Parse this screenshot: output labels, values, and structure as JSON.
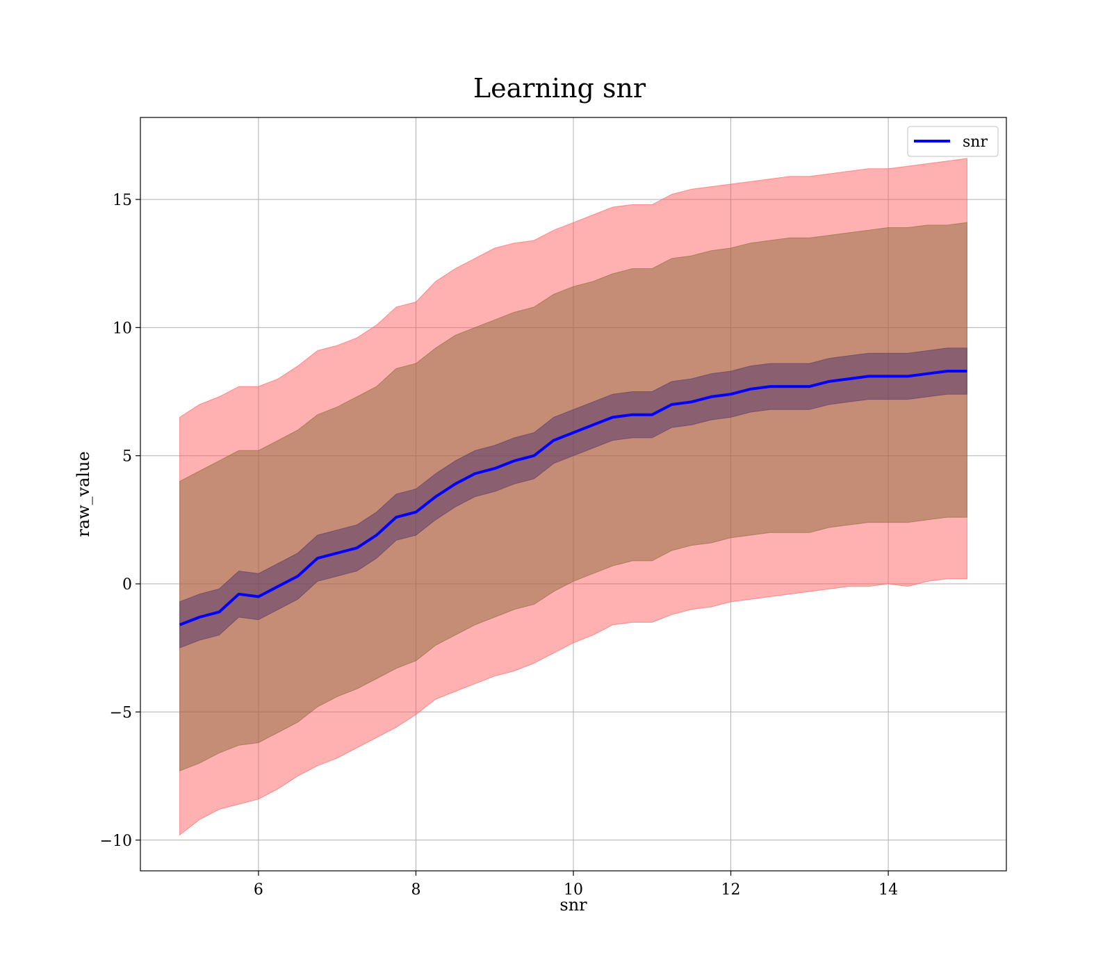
{
  "chart_data": {
    "type": "line",
    "title": "Learning snr",
    "xlabel": "snr",
    "ylabel": "raw_value",
    "xlim": [
      4.5,
      15.5
    ],
    "ylim": [
      -11.2,
      18.2
    ],
    "xticks": [
      6,
      8,
      10,
      12,
      14
    ],
    "yticks": [
      -10,
      -5,
      0,
      5,
      10,
      15
    ],
    "xtick_labels": [
      "6",
      "8",
      "10",
      "12",
      "14"
    ],
    "ytick_labels": [
      "−10",
      "−5",
      "0",
      "5",
      "10",
      "15"
    ],
    "grid": true,
    "legend": {
      "position": "top-right",
      "entries": [
        "snr"
      ]
    },
    "colors": {
      "line": "#0000ff",
      "outer_band": "#ff5a5a",
      "middle_band": "#8b6a3a",
      "inner_band": "#5a3a6a",
      "grid": "#b0b0b0"
    },
    "x": [
      5.0,
      5.25,
      5.5,
      5.75,
      6.0,
      6.25,
      6.5,
      6.75,
      7.0,
      7.25,
      7.5,
      7.75,
      8.0,
      8.25,
      8.5,
      8.75,
      9.0,
      9.25,
      9.5,
      9.75,
      10.0,
      10.25,
      10.5,
      10.75,
      11.0,
      11.25,
      11.5,
      11.75,
      12.0,
      12.25,
      12.5,
      12.75,
      13.0,
      13.25,
      13.5,
      13.75,
      14.0,
      14.25,
      14.5,
      14.75,
      15.0
    ],
    "series": [
      {
        "name": "snr",
        "values": [
          -1.6,
          -1.3,
          -1.1,
          -0.4,
          -0.5,
          -0.1,
          0.3,
          1.0,
          1.2,
          1.4,
          1.9,
          2.6,
          2.8,
          3.4,
          3.9,
          4.3,
          4.5,
          4.8,
          5.0,
          5.6,
          5.9,
          6.2,
          6.5,
          6.6,
          6.6,
          7.0,
          7.1,
          7.3,
          7.4,
          7.6,
          7.7,
          7.7,
          7.7,
          7.9,
          8.0,
          8.1,
          8.1,
          8.1,
          8.2,
          8.3,
          8.3
        ]
      }
    ],
    "bands": [
      {
        "lower": [
          -9.8,
          -9.2,
          -8.8,
          -8.6,
          -8.4,
          -8.0,
          -7.5,
          -7.1,
          -6.8,
          -6.4,
          -6.0,
          -5.6,
          -5.1,
          -4.5,
          -4.2,
          -3.9,
          -3.6,
          -3.4,
          -3.1,
          -2.7,
          -2.3,
          -2.0,
          -1.6,
          -1.5,
          -1.5,
          -1.2,
          -1.0,
          -0.9,
          -0.7,
          -0.6,
          -0.5,
          -0.4,
          -0.3,
          -0.2,
          -0.1,
          -0.1,
          0.0,
          -0.1,
          0.1,
          0.2,
          0.2
        ],
        "upper": [
          6.5,
          7.0,
          7.3,
          7.7,
          7.7,
          8.0,
          8.5,
          9.1,
          9.3,
          9.6,
          10.1,
          10.8,
          11.0,
          11.8,
          12.3,
          12.7,
          13.1,
          13.3,
          13.4,
          13.8,
          14.1,
          14.4,
          14.7,
          14.8,
          14.8,
          15.2,
          15.4,
          15.5,
          15.6,
          15.7,
          15.8,
          15.9,
          15.9,
          16.0,
          16.1,
          16.2,
          16.2,
          16.3,
          16.4,
          16.5,
          16.6
        ]
      },
      {
        "lower": [
          -7.3,
          -7.0,
          -6.6,
          -6.3,
          -6.2,
          -5.8,
          -5.4,
          -4.8,
          -4.4,
          -4.1,
          -3.7,
          -3.3,
          -3.0,
          -2.4,
          -2.0,
          -1.6,
          -1.3,
          -1.0,
          -0.8,
          -0.3,
          0.1,
          0.4,
          0.7,
          0.9,
          0.9,
          1.3,
          1.5,
          1.6,
          1.8,
          1.9,
          2.0,
          2.0,
          2.0,
          2.2,
          2.3,
          2.4,
          2.4,
          2.4,
          2.5,
          2.6,
          2.6
        ],
        "upper": [
          4.0,
          4.4,
          4.8,
          5.2,
          5.2,
          5.6,
          6.0,
          6.6,
          6.9,
          7.3,
          7.7,
          8.4,
          8.6,
          9.2,
          9.7,
          10.0,
          10.3,
          10.6,
          10.8,
          11.3,
          11.6,
          11.8,
          12.1,
          12.3,
          12.3,
          12.7,
          12.8,
          13.0,
          13.1,
          13.3,
          13.4,
          13.5,
          13.5,
          13.6,
          13.7,
          13.8,
          13.9,
          13.9,
          14.0,
          14.0,
          14.1
        ]
      },
      {
        "lower": [
          -2.5,
          -2.2,
          -2.0,
          -1.3,
          -1.4,
          -1.0,
          -0.6,
          0.1,
          0.3,
          0.5,
          1.0,
          1.7,
          1.9,
          2.5,
          3.0,
          3.4,
          3.6,
          3.9,
          4.1,
          4.7,
          5.0,
          5.3,
          5.6,
          5.7,
          5.7,
          6.1,
          6.2,
          6.4,
          6.5,
          6.7,
          6.8,
          6.8,
          6.8,
          7.0,
          7.1,
          7.2,
          7.2,
          7.2,
          7.3,
          7.4,
          7.4
        ],
        "upper": [
          -0.7,
          -0.4,
          -0.2,
          0.5,
          0.4,
          0.8,
          1.2,
          1.9,
          2.1,
          2.3,
          2.8,
          3.5,
          3.7,
          4.3,
          4.8,
          5.2,
          5.4,
          5.7,
          5.9,
          6.5,
          6.8,
          7.1,
          7.4,
          7.5,
          7.5,
          7.9,
          8.0,
          8.2,
          8.3,
          8.5,
          8.6,
          8.6,
          8.6,
          8.8,
          8.9,
          9.0,
          9.0,
          9.0,
          9.1,
          9.2,
          9.2
        ]
      }
    ]
  }
}
